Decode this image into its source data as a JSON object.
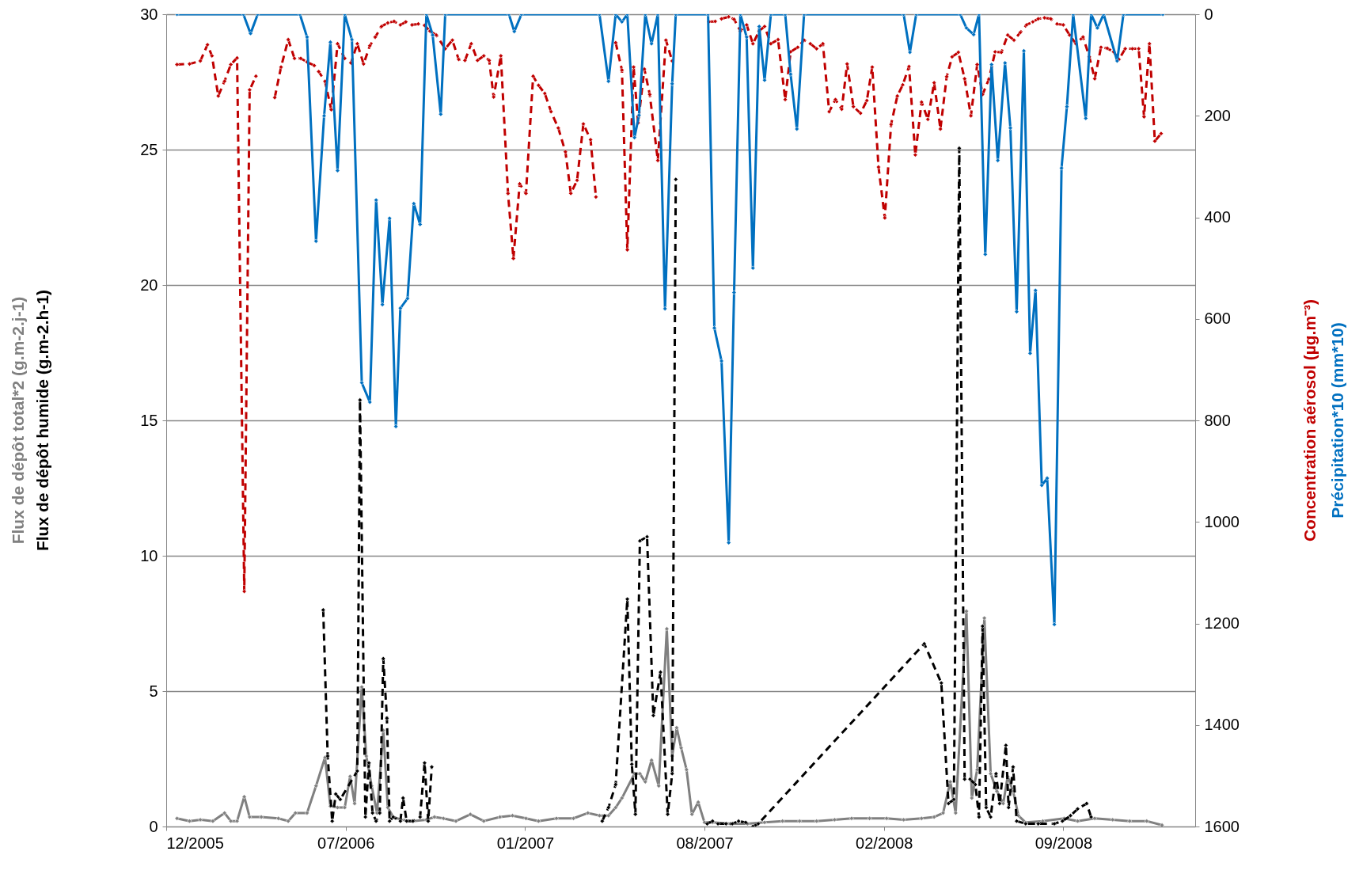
{
  "chart_data": {
    "type": "line",
    "marker": "diamond",
    "grid": "y",
    "xlim": [
      "2005-12-15",
      "2009-02-04"
    ],
    "xticks": [
      {
        "value": "2005-12-15",
        "label": "12/2005"
      },
      {
        "value": "2006-07-03",
        "label": "07/2006"
      },
      {
        "value": "2007-01-19",
        "label": "01/2007"
      },
      {
        "value": "2007-08-07",
        "label": "08/2007"
      },
      {
        "value": "2008-02-23",
        "label": "02/2008"
      },
      {
        "value": "2008-09-10",
        "label": "09/2008"
      }
    ],
    "ylim": [
      0,
      30
    ],
    "yticks": [
      0,
      5,
      10,
      15,
      20,
      25,
      30
    ],
    "y2lim": [
      1600,
      0
    ],
    "y2ticks": [
      0,
      200,
      400,
      600,
      800,
      1000,
      1200,
      1400,
      1600
    ],
    "series": [
      {
        "name": "Flux de dépôt total*2 (g.m-2.j-1)",
        "color": "#808080",
        "line_style": "solid",
        "x": [
          "2005-12-27",
          "2006-01-10",
          "2006-01-22",
          "2006-02-05",
          "2006-02-18",
          "2006-02-25",
          "2006-03-04",
          "2006-03-12",
          "2006-03-18",
          "2006-03-31",
          "2006-04-19",
          "2006-04-30",
          "2006-05-08",
          "2006-05-21",
          "2006-05-31",
          "2006-06-10",
          "2006-06-16",
          "2006-06-24",
          "2006-07-02",
          "2006-07-08",
          "2006-07-13",
          "2006-07-21",
          "2006-07-26",
          "2006-08-01",
          "2006-08-07",
          "2006-08-14",
          "2006-08-19",
          "2006-08-25",
          "2006-09-03",
          "2006-09-16",
          "2006-10-01",
          "2006-10-10",
          "2006-10-20",
          "2006-11-03",
          "2006-11-19",
          "2006-12-04",
          "2006-12-22",
          "2007-01-05",
          "2007-01-20",
          "2007-02-03",
          "2007-02-23",
          "2007-03-14",
          "2007-03-30",
          "2007-04-12",
          "2007-04-22",
          "2007-04-30",
          "2007-05-07",
          "2007-05-21",
          "2007-05-27",
          "2007-06-02",
          "2007-06-09",
          "2007-06-17",
          "2007-06-26",
          "2007-07-02",
          "2007-07-07",
          "2007-07-12",
          "2007-07-18",
          "2007-07-24",
          "2007-07-31",
          "2007-08-07",
          "2007-08-16",
          "2007-09-05",
          "2007-09-24",
          "2007-10-13",
          "2007-11-02",
          "2007-11-21",
          "2007-12-10",
          "2007-12-30",
          "2008-01-18",
          "2008-02-07",
          "2008-02-26",
          "2008-03-16",
          "2008-04-05",
          "2008-04-19",
          "2008-04-29",
          "2008-05-07",
          "2008-05-13",
          "2008-05-25",
          "2008-05-31",
          "2008-06-06",
          "2008-06-14",
          "2008-06-21",
          "2008-06-28",
          "2008-07-05",
          "2008-07-10",
          "2008-07-16",
          "2008-07-22",
          "2008-07-30",
          "2008-08-18",
          "2008-09-11",
          "2008-09-26",
          "2008-10-15",
          "2008-11-04",
          "2008-11-23",
          "2008-12-12",
          "2008-12-29"
        ],
        "values": [
          0.3,
          0.2,
          0.25,
          0.2,
          0.5,
          0.2,
          0.2,
          1.1,
          0.35,
          0.35,
          0.3,
          0.2,
          0.5,
          0.5,
          1.5,
          2.55,
          0.75,
          0.7,
          0.7,
          1.85,
          0.85,
          5.15,
          2.6,
          1.5,
          0.5,
          3.55,
          0.7,
          0.35,
          0.25,
          0.2,
          0.25,
          0.35,
          0.3,
          0.2,
          0.45,
          0.2,
          0.35,
          0.4,
          0.3,
          0.2,
          0.3,
          0.3,
          0.5,
          0.4,
          0.4,
          0.7,
          1.05,
          1.95,
          1.95,
          1.65,
          2.45,
          1.5,
          7.3,
          2.6,
          3.65,
          2.9,
          2.1,
          0.45,
          0.9,
          0.15,
          0.15,
          0.1,
          0.1,
          0.15,
          0.2,
          0.2,
          0.2,
          0.25,
          0.3,
          0.3,
          0.3,
          0.25,
          0.3,
          0.35,
          0.5,
          1.65,
          0.5,
          7.95,
          1.05,
          2.1,
          7.7,
          1.95,
          1.3,
          0.85,
          1.85,
          1.3,
          0.4,
          0.15,
          0.2,
          0.3,
          0.2,
          0.3,
          0.25,
          0.2,
          0.2,
          0.05
        ]
      },
      {
        "name": "Flux de dépôt humide (g.m-2.h-1)",
        "color": "#000000",
        "line_style": "dashed",
        "x": [
          "2006-06-08",
          "2006-06-13",
          "2006-06-18",
          "2006-06-22",
          "2006-06-27",
          "2006-07-16",
          "2006-07-19",
          "2006-07-25",
          "2006-07-29",
          "2006-08-02",
          "2006-08-06",
          "2006-08-10",
          "2006-08-14",
          "2006-08-18",
          "2006-08-21",
          "2006-08-25",
          "2006-09-02",
          "2006-09-05",
          "2006-09-09",
          "2006-09-16",
          "2006-09-24",
          "2006-09-29",
          "2006-10-03",
          "2006-10-07",
          "2006-10-20",
          "2007-04-15",
          "2007-04-22",
          "2007-04-30",
          "2007-05-13",
          "2007-05-18",
          "2007-05-22",
          "2007-05-27",
          "2007-06-04",
          "2007-06-11",
          "2007-06-19",
          "2007-06-27",
          "2007-07-02",
          "2007-07-06",
          "2007-07-25",
          "2007-08-10",
          "2007-08-16",
          "2007-08-22",
          "2007-08-31",
          "2007-09-07",
          "2007-09-14",
          "2007-09-22",
          "2007-09-30",
          "2007-10-06",
          "2008-04-08",
          "2008-04-27",
          "2008-05-05",
          "2008-05-11",
          "2008-05-17",
          "2008-05-23",
          "2008-05-29",
          "2008-06-04",
          "2008-06-08",
          "2008-06-12",
          "2008-06-16",
          "2008-06-21",
          "2008-06-27",
          "2008-07-01",
          "2008-07-08",
          "2008-07-11",
          "2008-07-16",
          "2008-07-20",
          "2008-07-30",
          "2008-08-13",
          "2008-08-31",
          "2008-09-09",
          "2008-09-18",
          "2008-09-26",
          "2008-10-06",
          "2008-10-11"
        ],
        "values": [
          8.0,
          2.6,
          0.2,
          1.2,
          1.0,
          2.05,
          15.75,
          0.35,
          2.35,
          0.5,
          0.2,
          0.5,
          6.2,
          4.0,
          0.2,
          0.35,
          0.2,
          1.05,
          0.2,
          0.2,
          0.35,
          2.35,
          0.2,
          2.2,
          null,
          0.2,
          0.7,
          1.55,
          8.4,
          2.3,
          0.45,
          10.55,
          10.7,
          4.1,
          5.7,
          0.45,
          1.95,
          23.9,
          null,
          0.1,
          0.2,
          0.1,
          0.1,
          0.1,
          0.2,
          0.15,
          0.0,
          0.1,
          6.75,
          5.3,
          0.85,
          1.0,
          25.05,
          1.75,
          1.75,
          1.55,
          0.35,
          7.4,
          0.7,
          0.35,
          1.95,
          0.85,
          3.0,
          0.7,
          2.2,
          0.2,
          0.1,
          0.1,
          0.1,
          0.2,
          0.4,
          0.65,
          0.85,
          0.35
        ]
      },
      {
        "name": "Concentration aérosol (µg.m⁻³)",
        "color": "#c00000",
        "line_style": "dashed",
        "axis": "y2",
        "x": [
          "2005-12-27",
          "2006-01-10",
          "2006-01-22",
          "2006-01-30",
          "2006-02-04",
          "2006-02-11",
          "2006-02-18",
          "2006-02-25",
          "2006-03-04",
          "2006-03-12",
          "2006-03-18",
          "2006-03-25",
          "2006-04-05",
          "2006-04-15",
          "2006-04-22",
          "2006-04-30",
          "2006-05-07",
          "2006-05-14",
          "2006-05-21",
          "2006-05-29",
          "2006-06-03",
          "2006-06-10",
          "2006-06-17",
          "2006-06-24",
          "2006-07-02",
          "2006-07-09",
          "2006-07-16",
          "2006-07-23",
          "2006-07-30",
          "2006-08-05",
          "2006-08-12",
          "2006-08-19",
          "2006-08-26",
          "2006-09-02",
          "2006-09-08",
          "2006-09-15",
          "2006-09-22",
          "2006-09-29",
          "2006-10-05",
          "2006-10-12",
          "2006-10-22",
          "2006-10-30",
          "2006-11-06",
          "2006-11-13",
          "2006-11-20",
          "2006-11-27",
          "2006-12-04",
          "2006-12-10",
          "2006-12-15",
          "2006-12-23",
          "2006-12-31",
          "2007-01-06",
          "2007-01-13",
          "2007-01-20",
          "2007-01-28",
          "2007-02-03",
          "2007-02-10",
          "2007-02-17",
          "2007-02-25",
          "2007-03-05",
          "2007-03-11",
          "2007-03-18",
          "2007-03-25",
          "2007-04-02",
          "2007-04-08",
          "2007-04-20",
          "2007-04-30",
          "2007-05-07",
          "2007-05-13",
          "2007-05-20",
          "2007-05-25",
          "2007-06-01",
          "2007-06-07",
          "2007-06-16",
          "2007-06-25",
          "2007-07-02",
          "2007-07-20",
          "2007-08-12",
          "2007-08-19",
          "2007-08-26",
          "2007-09-03",
          "2007-09-09",
          "2007-09-16",
          "2007-09-23",
          "2007-09-30",
          "2007-10-07",
          "2007-10-13",
          "2007-10-20",
          "2007-10-28",
          "2007-11-05",
          "2007-11-11",
          "2007-11-19",
          "2007-11-26",
          "2007-12-03",
          "2007-12-10",
          "2007-12-17",
          "2007-12-24",
          "2007-12-31",
          "2008-01-07",
          "2008-01-13",
          "2008-01-20",
          "2008-01-28",
          "2008-02-04",
          "2008-02-10",
          "2008-02-17",
          "2008-02-24",
          "2008-03-02",
          "2008-03-09",
          "2008-03-15",
          "2008-03-22",
          "2008-03-29",
          "2008-04-05",
          "2008-04-12",
          "2008-04-19",
          "2008-04-26",
          "2008-05-03",
          "2008-05-09",
          "2008-05-16",
          "2008-05-23",
          "2008-05-30",
          "2008-06-06",
          "2008-06-12",
          "2008-06-19",
          "2008-06-26",
          "2008-07-03",
          "2008-07-10",
          "2008-07-17",
          "2008-07-24",
          "2008-07-31",
          "2008-08-07",
          "2008-08-13",
          "2008-08-20",
          "2008-08-27",
          "2008-09-03",
          "2008-09-10",
          "2008-09-17",
          "2008-09-24",
          "2008-10-02",
          "2008-10-09",
          "2008-10-15",
          "2008-10-22",
          "2008-10-29",
          "2008-11-05",
          "2008-11-11",
          "2008-11-18",
          "2008-11-26",
          "2008-12-03",
          "2008-12-09",
          "2008-12-15",
          "2008-12-21",
          "2008-12-28"
        ],
        "values": [
          99,
          98,
          92,
          60,
          82,
          161,
          132,
          99,
          86,
          1137,
          149,
          122,
          null,
          164,
          104,
          50,
          87,
          87,
          94,
          101,
          113,
          132,
          188,
          58,
          87,
          96,
          58,
          98,
          62,
          45,
          24,
          17,
          14,
          21,
          15,
          21,
          19,
          22,
          33,
          41,
          68,
          51,
          89,
          91,
          58,
          91,
          82,
          91,
          163,
          82,
          353,
          481,
          334,
          353,
          122,
          140,
          156,
          192,
          224,
          271,
          353,
          327,
          216,
          247,
          360,
          null,
          56,
          110,
          464,
          104,
          214,
          108,
          158,
          288,
          51,
          92,
          null,
          15,
          14,
          9,
          5,
          10,
          33,
          21,
          58,
          33,
          24,
          58,
          50,
          168,
          74,
          65,
          51,
          58,
          68,
          58,
          192,
          168,
          187,
          98,
          182,
          195,
          170,
          104,
          301,
          401,
          217,
          161,
          139,
          103,
          277,
          173,
          207,
          135,
          226,
          123,
          84,
          75,
          127,
          200,
          99,
          158,
          128,
          74,
          75,
          41,
          51,
          36,
          21,
          15,
          9,
          7,
          9,
          19,
          21,
          41,
          58,
          45,
          84,
          127,
          65,
          67,
          74,
          89,
          68,
          68,
          68,
          202,
          58,
          250,
          235
        ]
      },
      {
        "name": "Précipitation*10 (mm*10)",
        "color": "#0070c0",
        "line_style": "solid",
        "axis": "y2",
        "x": [
          "2005-12-27",
          "2006-03-11",
          "2006-03-19",
          "2006-03-27",
          "2006-05-13",
          "2006-05-21",
          "2006-05-31",
          "2006-06-09",
          "2006-06-16",
          "2006-06-24",
          "2006-07-02",
          "2006-07-10",
          "2006-07-21",
          "2006-07-30",
          "2006-08-06",
          "2006-08-13",
          "2006-08-21",
          "2006-08-28",
          "2006-09-02",
          "2006-09-10",
          "2006-09-17",
          "2006-09-24",
          "2006-10-01",
          "2006-10-08",
          "2006-10-17",
          "2006-10-22",
          "2007-01-01",
          "2007-01-07",
          "2007-01-15",
          "2007-04-12",
          "2007-04-22",
          "2007-04-30",
          "2007-05-07",
          "2007-05-13",
          "2007-05-21",
          "2007-05-26",
          "2007-06-02",
          "2007-06-09",
          "2007-06-16",
          "2007-06-24",
          "2007-07-02",
          "2007-07-06",
          "2007-08-11",
          "2007-08-18",
          "2007-08-26",
          "2007-09-03",
          "2007-09-09",
          "2007-09-16",
          "2007-09-23",
          "2007-09-30",
          "2007-10-07",
          "2007-10-13",
          "2007-10-20",
          "2007-11-05",
          "2007-11-11",
          "2007-11-18",
          "2007-11-26",
          "2008-03-16",
          "2008-03-23",
          "2008-03-30",
          "2008-05-18",
          "2008-05-25",
          "2008-06-02",
          "2008-06-08",
          "2008-06-15",
          "2008-06-22",
          "2008-06-29",
          "2008-07-07",
          "2008-07-13",
          "2008-07-20",
          "2008-07-28",
          "2008-08-04",
          "2008-08-10",
          "2008-08-17",
          "2008-08-23",
          "2008-08-31",
          "2008-09-08",
          "2008-09-14",
          "2008-09-21",
          "2008-10-05",
          "2008-10-11",
          "2008-10-18",
          "2008-10-25",
          "2008-11-09",
          "2008-11-16",
          "2008-12-30"
        ],
        "values": [
          0,
          0,
          38,
          0,
          0,
          45,
          447,
          200,
          55,
          308,
          0,
          50,
          726,
          764,
          366,
          572,
          402,
          812,
          579,
          560,
          373,
          414,
          0,
          41,
          197,
          0,
          0,
          34,
          0,
          0,
          132,
          0,
          15,
          0,
          243,
          199,
          0,
          58,
          0,
          580,
          137,
          0,
          0,
          618,
          683,
          1041,
          548,
          0,
          45,
          500,
          24,
          130,
          0,
          0,
          118,
          226,
          0,
          0,
          75,
          0,
          0,
          27,
          40,
          0,
          473,
          99,
          288,
          96,
          224,
          586,
          72,
          668,
          544,
          928,
          914,
          1202,
          303,
          182,
          0,
          205,
          0,
          27,
          0,
          92,
          0,
          0
        ]
      }
    ]
  }
}
